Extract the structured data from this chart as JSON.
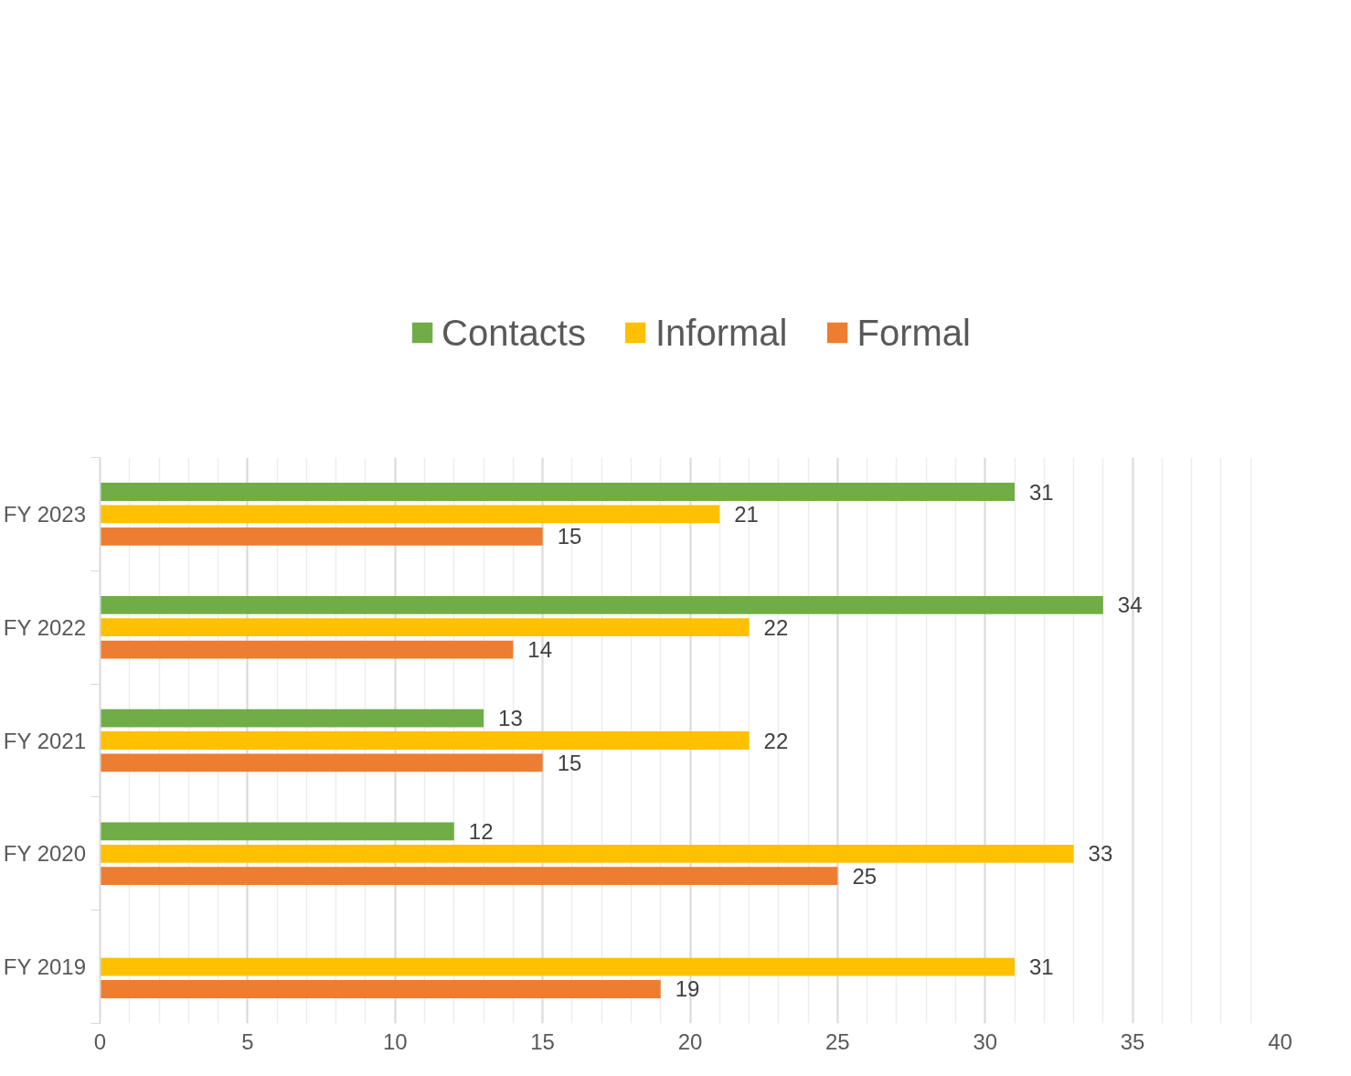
{
  "chart_data": {
    "type": "bar",
    "orientation": "horizontal",
    "categories": [
      "FY 2023",
      "FY 2022",
      "FY 2021",
      "FY 2020",
      "FY 2019"
    ],
    "series": [
      {
        "name": "Contacts",
        "color": "#70ad47",
        "values": [
          31,
          34,
          13,
          12,
          null
        ]
      },
      {
        "name": "Informal",
        "color": "#ffc000",
        "values": [
          21,
          22,
          22,
          33,
          31
        ]
      },
      {
        "name": "Formal",
        "color": "#ed7d31",
        "values": [
          15,
          14,
          15,
          25,
          19
        ]
      }
    ],
    "xlim": [
      0,
      40
    ],
    "xticks": [
      0,
      5,
      10,
      15,
      20,
      25,
      30,
      35,
      40
    ],
    "grid": "x",
    "legend": "top",
    "data_labels": true
  }
}
